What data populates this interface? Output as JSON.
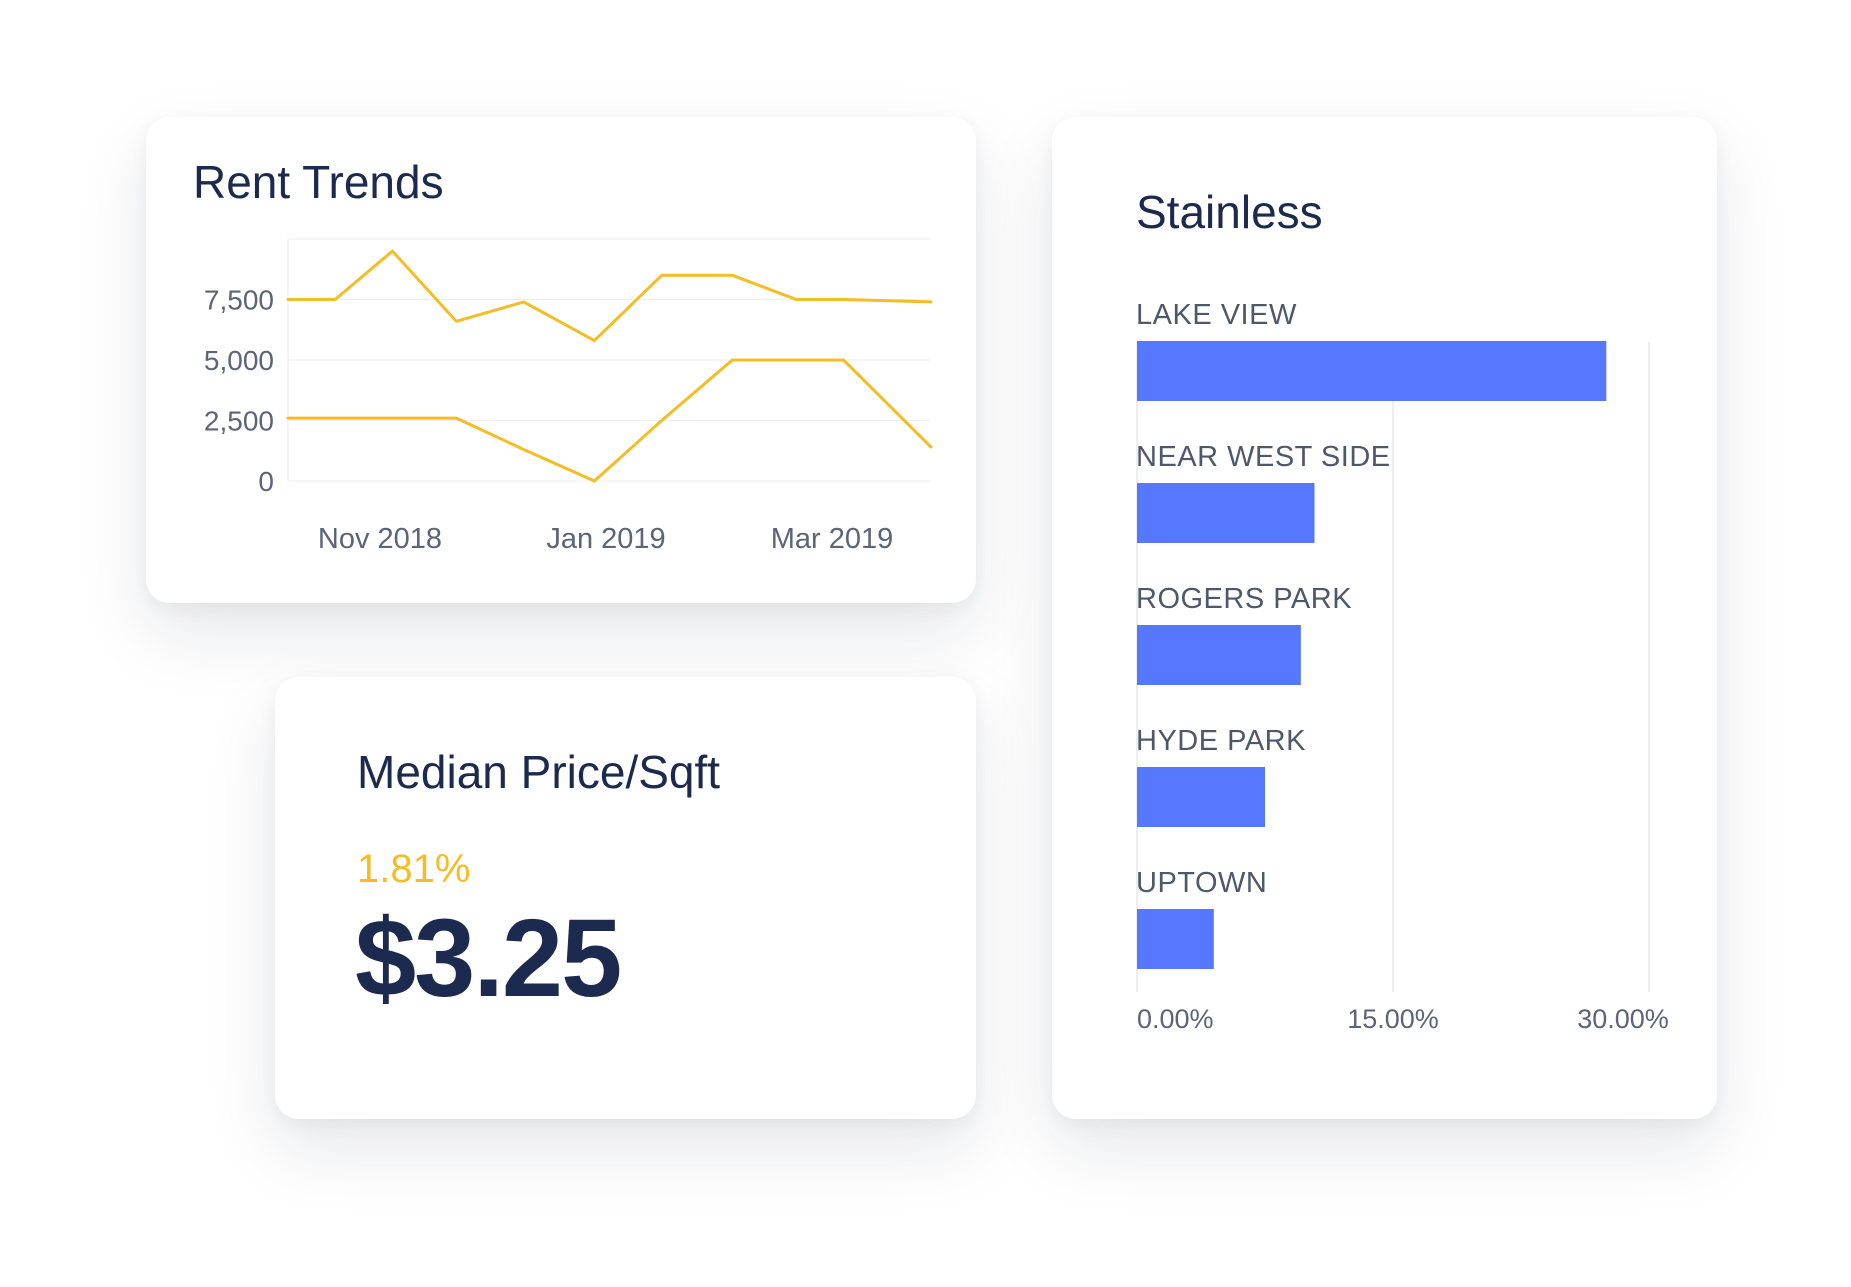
{
  "cards": {
    "rent_trends": {
      "title": "Rent Trends"
    },
    "median_price": {
      "title": "Median Price/Sqft",
      "change": "1.81%",
      "value": "$3.25"
    },
    "stainless": {
      "title": "Stainless"
    }
  },
  "colors": {
    "line_series": "#f5bd25",
    "bar": "#5578ff",
    "title_text": "#1b2a4e",
    "axis_text": "#5b6478",
    "gridline": "#eeeeee"
  },
  "chart_data": [
    {
      "type": "line",
      "title": "Rent Trends",
      "xlabel": "",
      "ylabel": "",
      "x_tick_labels": [
        "Nov 2018",
        "Jan 2019",
        "Mar 2019"
      ],
      "y_tick_labels": [
        "0",
        "2,500",
        "5,000",
        "7,500"
      ],
      "y_ticks": [
        0,
        2500,
        5000,
        7500
      ],
      "ylim": [
        0,
        10000
      ],
      "grid": true,
      "x": [
        "2018-10-01",
        "2018-10-15",
        "2018-11-01",
        "2018-11-20",
        "2018-12-10",
        "2018-12-31",
        "2019-01-20",
        "2019-02-10",
        "2019-03-01",
        "2019-03-15",
        "2019-04-10"
      ],
      "series": [
        {
          "values": [
            7500,
            7500,
            9500,
            6600,
            7400,
            5800,
            8500,
            8500,
            7500,
            7500,
            7400
          ]
        },
        {
          "values": [
            2600,
            2600,
            2600,
            2600,
            1300,
            0,
            2500,
            5000,
            5000,
            5000,
            1400
          ]
        }
      ]
    },
    {
      "type": "bar",
      "orientation": "horizontal",
      "title": "Stainless",
      "xlabel": "",
      "ylabel": "",
      "categories": [
        "LAKE VIEW",
        "NEAR WEST SIDE",
        "ROGERS PARK",
        "HYDE PARK",
        "UPTOWN"
      ],
      "values": [
        27.5,
        10.4,
        9.6,
        7.5,
        4.5
      ],
      "x_tick_labels": [
        "0.00%",
        "15.00%",
        "30.00%"
      ],
      "x_ticks": [
        0,
        15,
        30
      ],
      "xlim": [
        0,
        30
      ],
      "grid": true
    }
  ]
}
